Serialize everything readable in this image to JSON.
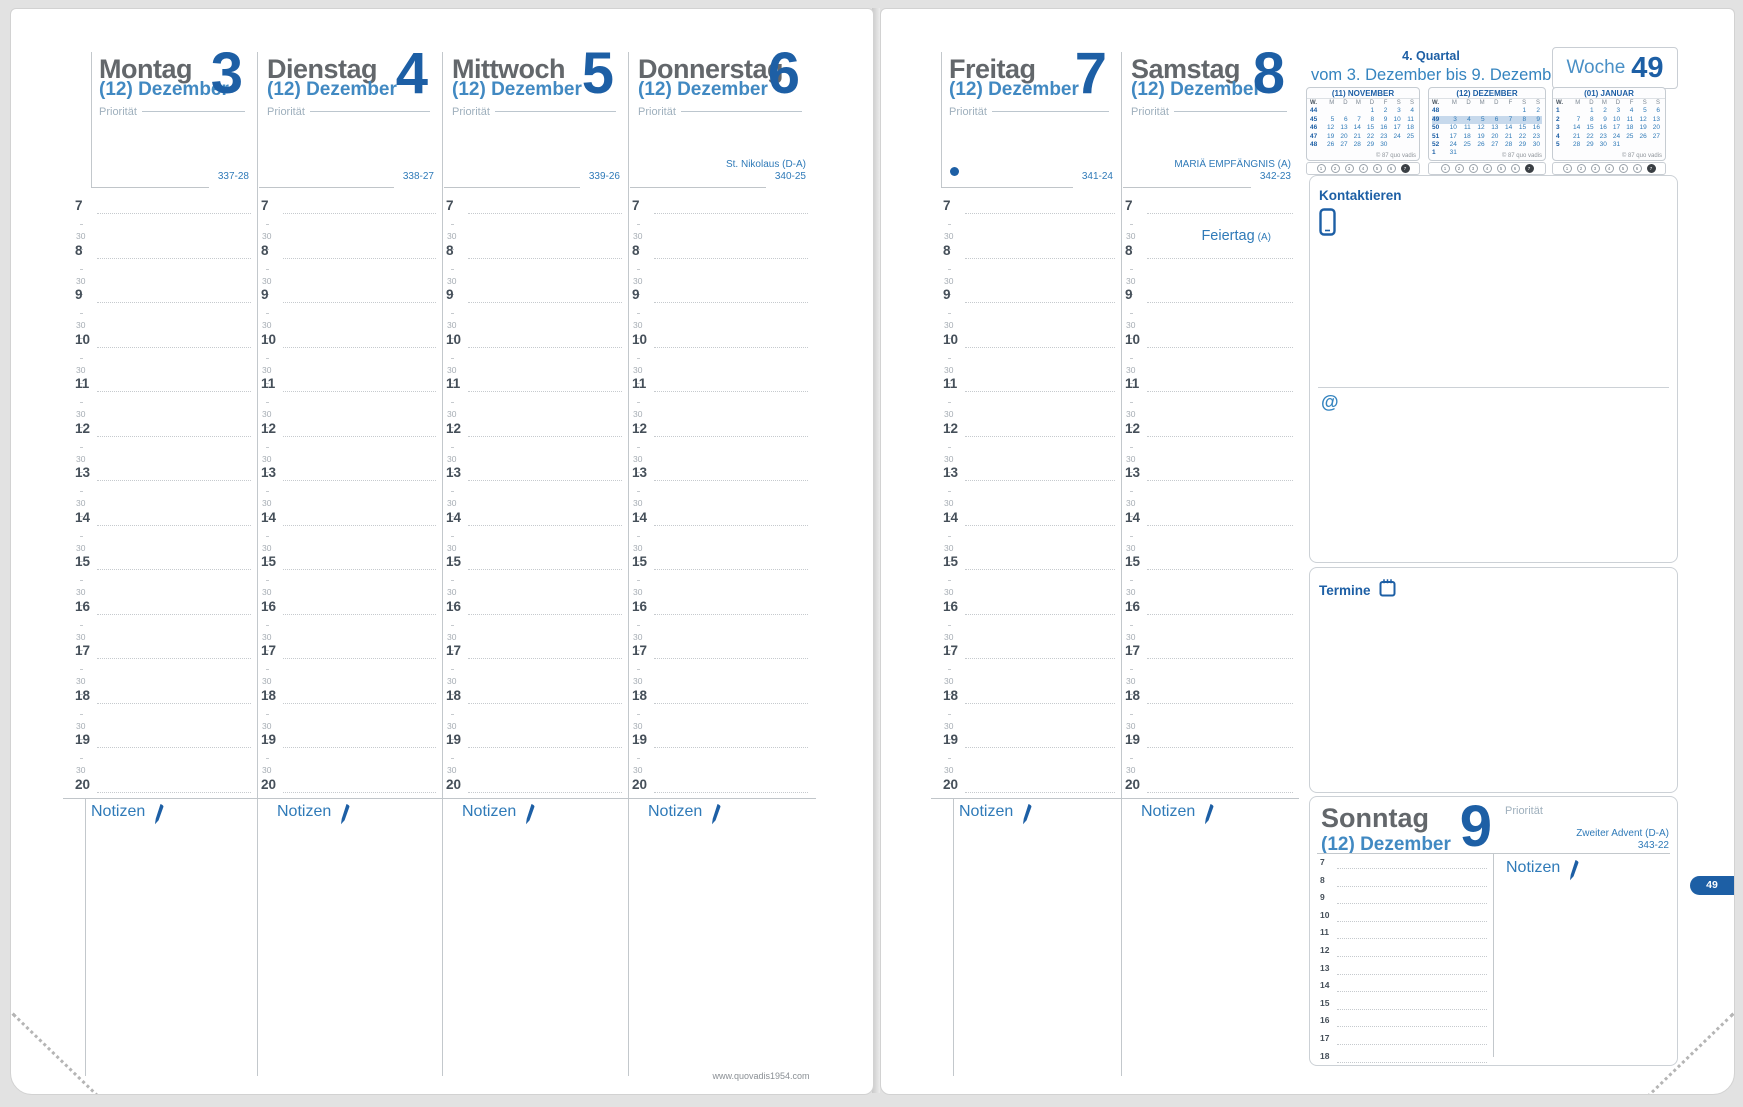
{
  "week_header": {
    "quarter": "4. Quartal",
    "range": "vom 3. Dezember bis 9. Dezember",
    "week_word": "Woche",
    "week_number": "49",
    "side_tab": "49"
  },
  "labels": {
    "priority": "Priorität",
    "notes": "Notizen"
  },
  "sections": {
    "contacts": {
      "title": "Kontaktieren",
      "at_symbol": "@"
    },
    "appointments": {
      "title": "Termine"
    }
  },
  "footer": {
    "website": "www.quovadis1954.com"
  },
  "time_grid": {
    "hours": [
      "7",
      "8",
      "9",
      "10",
      "11",
      "12",
      "13",
      "14",
      "15",
      "16",
      "17",
      "18",
      "19",
      "20"
    ],
    "half_label": "30"
  },
  "sunday_hours": [
    "7",
    "8",
    "9",
    "10",
    "11",
    "12",
    "13",
    "14",
    "15",
    "16",
    "17",
    "18"
  ],
  "days": [
    {
      "name": "Montag",
      "date_label": "(12) Dezember",
      "day_number": "3",
      "code": "337-28"
    },
    {
      "name": "Dienstag",
      "date_label": "(12) Dezember",
      "day_number": "4",
      "code": "338-27"
    },
    {
      "name": "Mittwoch",
      "date_label": "(12) Dezember",
      "day_number": "5",
      "code": "339-26"
    },
    {
      "name": "Donnerstag",
      "date_label": "(12) Dezember",
      "day_number": "6",
      "code": "340-25",
      "holiday_note": "St. Nikolaus (D-A)"
    },
    {
      "name": "Freitag",
      "date_label": "(12) Dezember",
      "day_number": "7",
      "code": "341-24",
      "moon_marker": true
    },
    {
      "name": "Samstag",
      "date_label": "(12) Dezember",
      "day_number": "8",
      "code": "342-23",
      "holiday_note": "MARIÄ EMPFÄNGNIS (A)",
      "column_note": "Feiertag",
      "column_note_suffix": "(A)"
    },
    {
      "name": "Sonntag",
      "date_label": "(12) Dezember",
      "day_number": "9",
      "code": "343-22",
      "holiday_note": "Zweiter Advent (D-A)"
    }
  ],
  "calendars": [
    {
      "title": "(11) NOVEMBER",
      "dow": [
        "W.",
        "M",
        "D",
        "M",
        "D",
        "F",
        "S",
        "S"
      ],
      "weeks": [
        {
          "wk": "44",
          "days": [
            "",
            "",
            "",
            "1",
            "2",
            "3",
            "4"
          ]
        },
        {
          "wk": "45",
          "days": [
            "5",
            "6",
            "7",
            "8",
            "9",
            "10",
            "11"
          ]
        },
        {
          "wk": "46",
          "days": [
            "12",
            "13",
            "14",
            "15",
            "16",
            "17",
            "18"
          ]
        },
        {
          "wk": "47",
          "days": [
            "19",
            "20",
            "21",
            "22",
            "23",
            "24",
            "25"
          ]
        },
        {
          "wk": "48",
          "days": [
            "26",
            "27",
            "28",
            "29",
            "30",
            "",
            ""
          ]
        }
      ],
      "copyright": "© 87 quo vadis",
      "pager": [
        "1",
        "2",
        "3",
        "4",
        "5",
        "6",
        "7"
      ]
    },
    {
      "title": "(12) DEZEMBER",
      "dow": [
        "W.",
        "M",
        "D",
        "M",
        "D",
        "F",
        "S",
        "S"
      ],
      "highlight_week": "49",
      "weeks": [
        {
          "wk": "48",
          "days": [
            "",
            "",
            "",
            "",
            "",
            "1",
            "2"
          ]
        },
        {
          "wk": "49",
          "days": [
            "3",
            "4",
            "5",
            "6",
            "7",
            "8",
            "9"
          ]
        },
        {
          "wk": "50",
          "days": [
            "10",
            "11",
            "12",
            "13",
            "14",
            "15",
            "16"
          ]
        },
        {
          "wk": "51",
          "days": [
            "17",
            "18",
            "19",
            "20",
            "21",
            "22",
            "23"
          ]
        },
        {
          "wk": "52",
          "days": [
            "24",
            "25",
            "26",
            "27",
            "28",
            "29",
            "30"
          ]
        },
        {
          "wk": "1",
          "days": [
            "31",
            "",
            "",
            "",
            "",
            "",
            ""
          ]
        }
      ],
      "copyright": "© 87 quo vadis",
      "pager": [
        "1",
        "2",
        "3",
        "4",
        "5",
        "6",
        "7"
      ]
    },
    {
      "title": "(01) JANUAR",
      "dow": [
        "W.",
        "M",
        "D",
        "M",
        "D",
        "F",
        "S",
        "S"
      ],
      "weeks": [
        {
          "wk": "1",
          "days": [
            "",
            "1",
            "2",
            "3",
            "4",
            "5",
            "6"
          ]
        },
        {
          "wk": "2",
          "days": [
            "7",
            "8",
            "9",
            "10",
            "11",
            "12",
            "13"
          ]
        },
        {
          "wk": "3",
          "days": [
            "14",
            "15",
            "16",
            "17",
            "18",
            "19",
            "20"
          ]
        },
        {
          "wk": "4",
          "days": [
            "21",
            "22",
            "23",
            "24",
            "25",
            "26",
            "27"
          ]
        },
        {
          "wk": "5",
          "days": [
            "28",
            "29",
            "30",
            "31",
            "",
            "",
            ""
          ]
        }
      ],
      "copyright": "© 87 quo vadis",
      "pager": [
        "1",
        "2",
        "3",
        "4",
        "5",
        "6",
        "7"
      ]
    }
  ]
}
